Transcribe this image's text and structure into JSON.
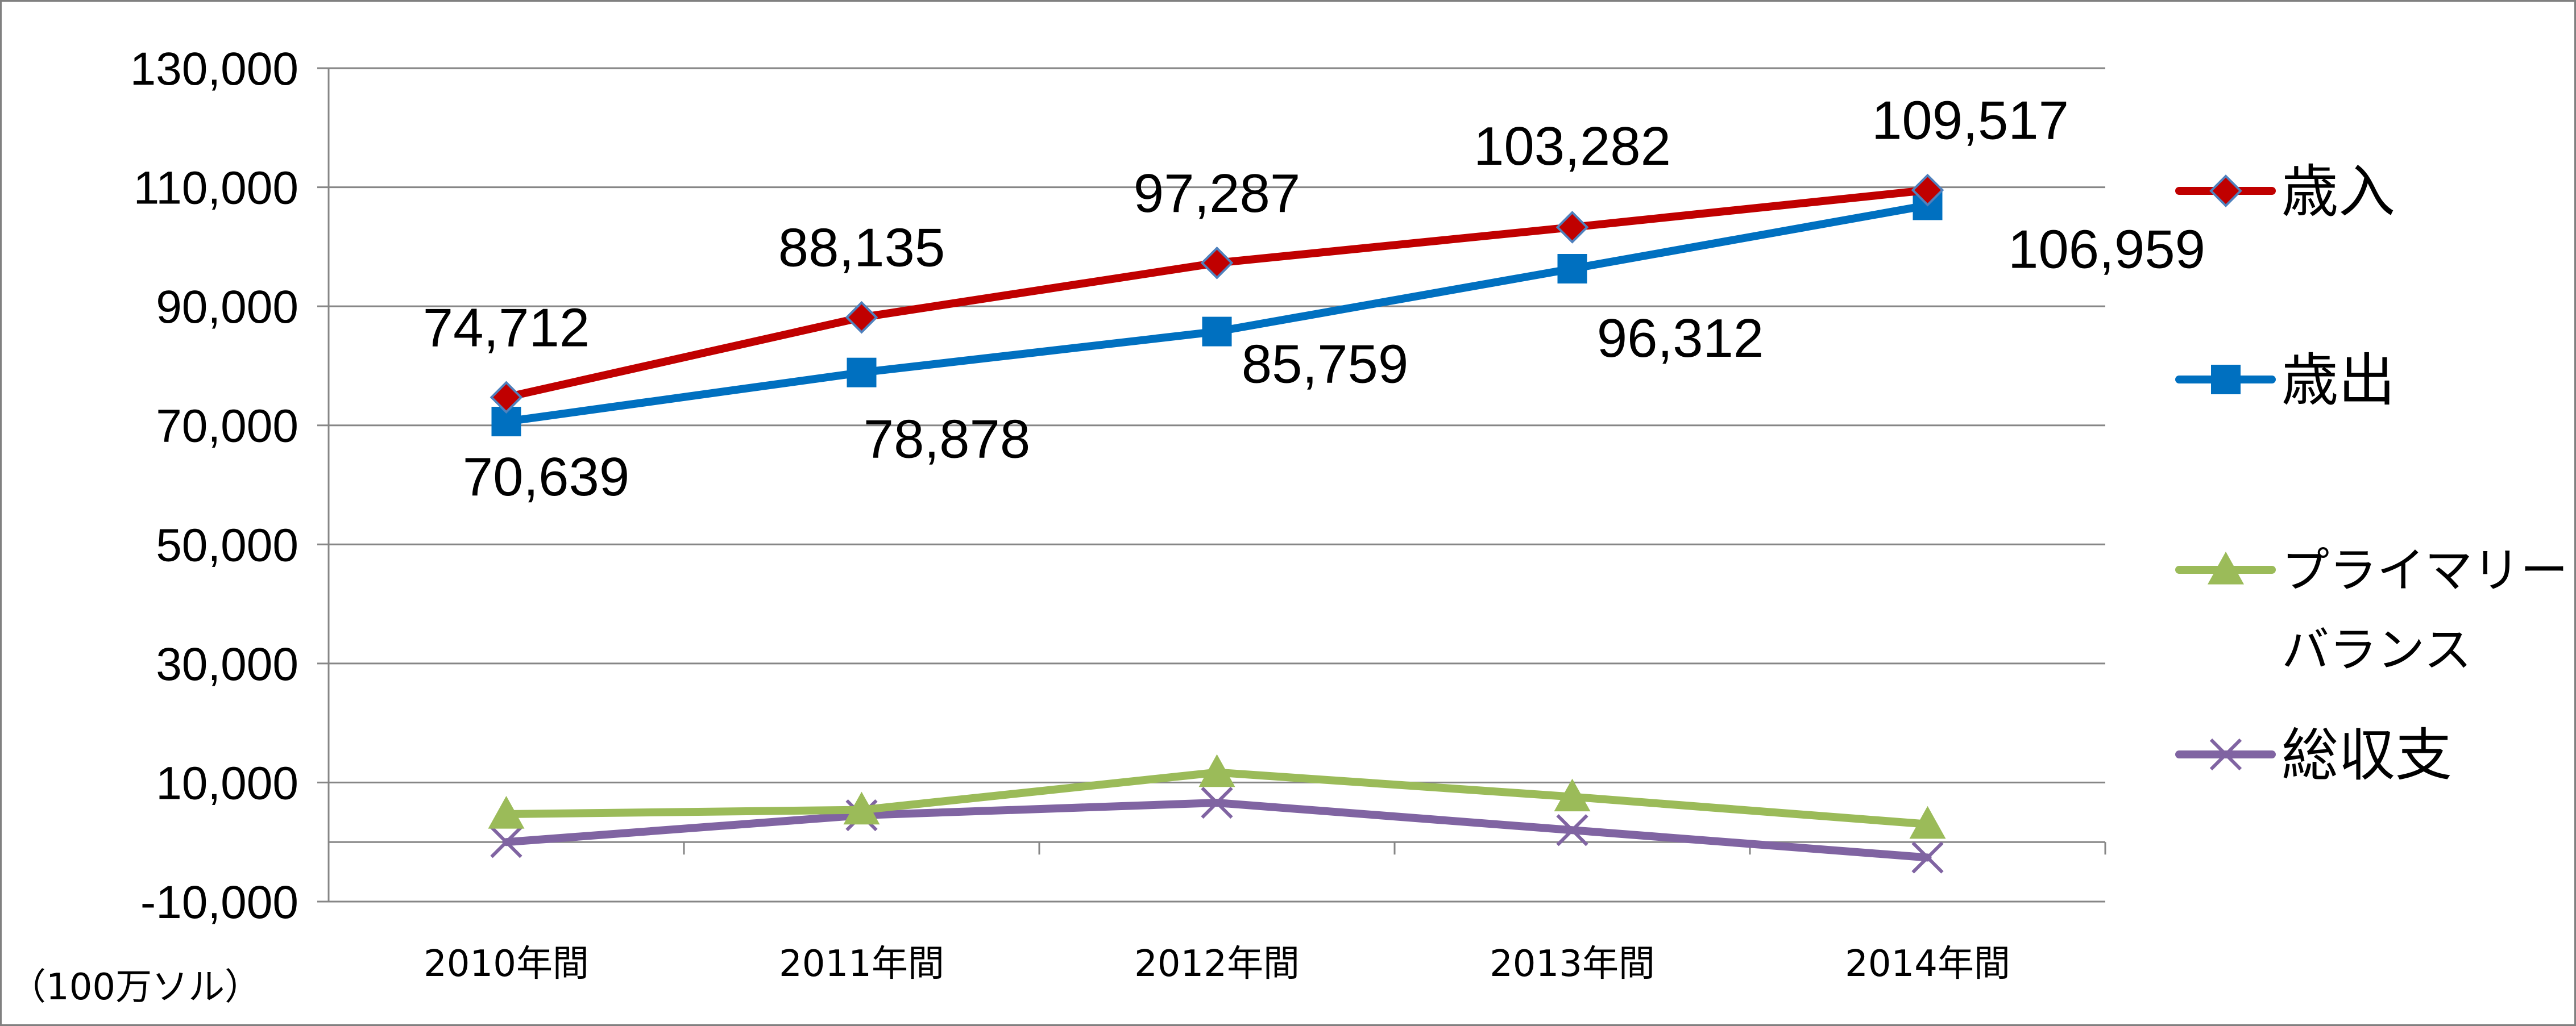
{
  "chart_data": {
    "type": "line",
    "categories": [
      "2010年間",
      "2011年間",
      "2012年間",
      "2013年間",
      "2014年間"
    ],
    "ylim": [
      -10000,
      130000
    ],
    "yticks": [
      "130,000",
      "110,000",
      "90,000",
      "70,000",
      "50,000",
      "30,000",
      "10,000",
      "-10,000"
    ],
    "yunit": "（100万ソル）",
    "grid": true,
    "legend_position": "right",
    "series": [
      {
        "name": "歳入",
        "values": [
          74712,
          88135,
          97287,
          103282,
          109517
        ],
        "labels": [
          "74,712",
          "88,135",
          "97,287",
          "103,282",
          "109,517"
        ],
        "color": "#C00000",
        "marker": "diamond"
      },
      {
        "name": "歳出",
        "values": [
          70639,
          78878,
          85759,
          96312,
          106959
        ],
        "labels": [
          "70,639",
          "78,878",
          "85,759",
          "96,312",
          "106,959"
        ],
        "color": "#0070C0",
        "marker": "square"
      },
      {
        "name": "プライマリーバランス",
        "legend_lines": [
          "プライマリー",
          "バランス"
        ],
        "values": [
          4700,
          5400,
          11700,
          7600,
          3000
        ],
        "color": "#9BBB59",
        "marker": "triangle"
      },
      {
        "name": "総収支",
        "values": [
          0,
          4500,
          6600,
          2000,
          -2600
        ],
        "color": "#8064A2",
        "marker": "x"
      }
    ]
  }
}
